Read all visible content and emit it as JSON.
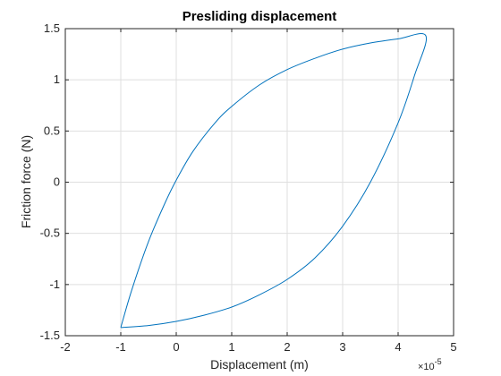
{
  "chart_data": {
    "type": "line",
    "title": "Presliding displacement",
    "xlabel": "Displacement (m)",
    "ylabel": "Friction force (N)",
    "x_multiplier": "×10",
    "x_multiplier_exponent": "-5",
    "xlim": [
      -2,
      5
    ],
    "ylim": [
      -1.5,
      1.5
    ],
    "xticks": [
      -2,
      -1,
      0,
      1,
      2,
      3,
      4,
      5
    ],
    "yticks": [
      -1.5,
      -1,
      -0.5,
      0,
      0.5,
      1,
      1.5
    ],
    "xtick_labels": [
      "-2",
      "-1",
      "0",
      "1",
      "2",
      "3",
      "4",
      "5"
    ],
    "ytick_labels": [
      "-1.5",
      "-1",
      "-0.5",
      "0",
      "0.5",
      "1",
      "1.5"
    ],
    "grid": true,
    "line_color": "#0072bd",
    "series": [
      {
        "x": [
          -1.0,
          -0.8,
          -0.5,
          -0.2,
          0.0,
          0.3,
          0.7,
          1.0,
          1.5,
          2.0,
          2.5,
          3.0,
          3.5,
          4.0,
          4.5,
          4.3,
          4.0,
          3.5,
          3.0,
          2.5,
          2.0,
          1.5,
          1.0,
          0.5,
          0.0,
          -0.5,
          -1.0
        ],
        "y": [
          -1.42,
          -1.05,
          -0.58,
          -0.2,
          0.02,
          0.3,
          0.58,
          0.74,
          0.95,
          1.1,
          1.21,
          1.3,
          1.36,
          1.4,
          1.43,
          1.05,
          0.58,
          -0.0,
          -0.43,
          -0.74,
          -0.95,
          -1.1,
          -1.22,
          -1.3,
          -1.36,
          -1.4,
          -1.42
        ]
      }
    ]
  }
}
